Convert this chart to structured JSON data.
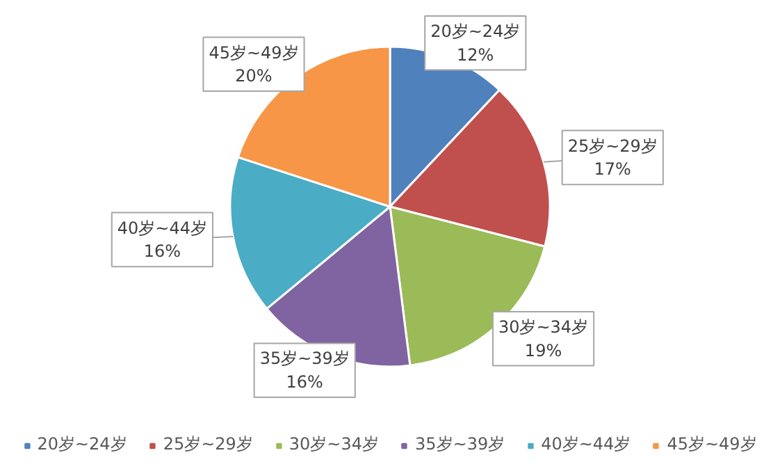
{
  "chart_data": {
    "type": "pie",
    "categories": [
      "20岁~24岁",
      "25岁~29岁",
      "30岁~34岁",
      "35岁~39岁",
      "40岁~44岁",
      "45岁~49岁"
    ],
    "values": [
      12,
      17,
      19,
      16,
      16,
      20
    ],
    "colors": [
      "#4f81bd",
      "#c0504d",
      "#9bbb59",
      "#8064a2",
      "#4bacc6",
      "#f79646"
    ],
    "value_labels": [
      "12%",
      "17%",
      "19%",
      "16%",
      "16%",
      "20%"
    ],
    "legend": "bottom"
  }
}
